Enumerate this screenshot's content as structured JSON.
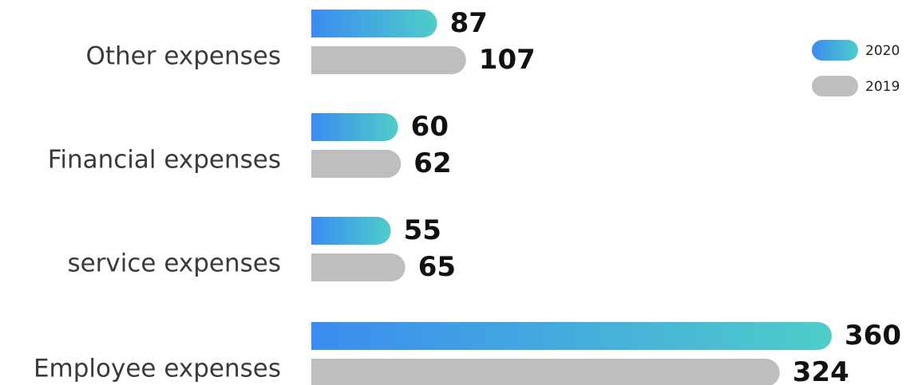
{
  "chart_data": {
    "type": "bar",
    "orientation": "horizontal",
    "categories": [
      "Other expenses",
      "Financial expenses",
      "service expenses",
      "Employee expenses"
    ],
    "series": [
      {
        "name": "2020",
        "values": [
          87,
          60,
          55,
          360
        ],
        "color_start": "#3b8cf0",
        "color_end": "#4ecdc9"
      },
      {
        "name": "2019",
        "values": [
          107,
          62,
          65,
          324
        ],
        "color": "#bdbebf"
      }
    ],
    "xlim": [
      0,
      360
    ],
    "grid": false,
    "legend_position": "top-right",
    "data_labels": true
  }
}
